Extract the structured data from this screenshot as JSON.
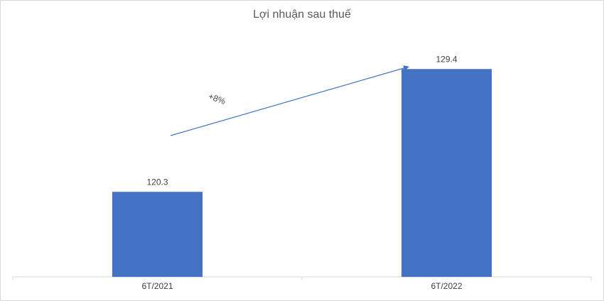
{
  "chart_data": {
    "type": "bar",
    "title": "Lợi nhuận sau thuế",
    "categories": [
      "6T/2021",
      "6T/2022"
    ],
    "values": [
      120.3,
      129.4
    ],
    "color": "#4472c4",
    "ylim": [
      114,
      131
    ],
    "annotation": "+8%"
  }
}
